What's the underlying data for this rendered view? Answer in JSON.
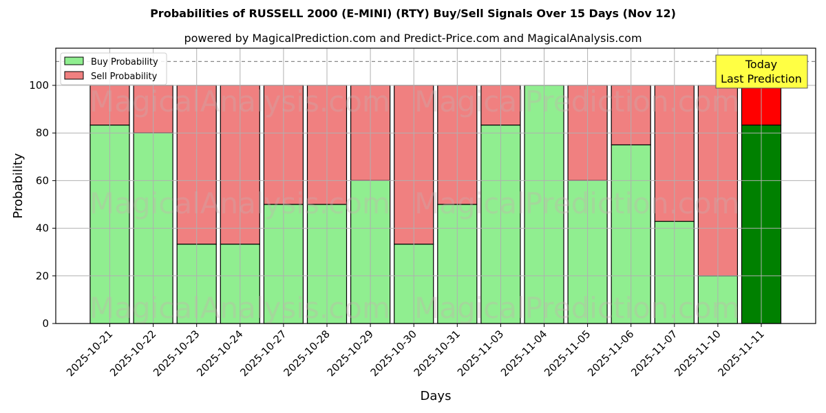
{
  "header": {
    "title": "Probabilities of RUSSELL 2000 (E-MINI) (RTY) Buy/Sell Signals Over 15 Days (Nov 12)",
    "subtitle": "powered by MagicalPrediction.com and Predict-Price.com and MagicalAnalysis.com"
  },
  "legend": {
    "buy_label": "Buy Probability",
    "sell_label": "Sell Probability"
  },
  "annotation": {
    "line1": "Today",
    "line2": "Last Prediction"
  },
  "watermarks": [
    "MagicalAnalysis.com",
    "MagicalPrediction.com"
  ],
  "colors": {
    "buy": "#90EE90",
    "sell": "#F08080",
    "today_buy": "#008000",
    "today_sell": "#FF0000",
    "annotation_bg": "#FFFF44"
  },
  "chart_data": {
    "type": "bar",
    "stacked": true,
    "title": "Probabilities of RUSSELL 2000 (E-MINI) (RTY) Buy/Sell Signals Over 15 Days (Nov 12)",
    "subtitle": "powered by MagicalPrediction.com and Predict-Price.com and MagicalAnalysis.com",
    "xlabel": "Days",
    "ylabel": "Probability",
    "ylim": [
      0,
      115
    ],
    "yticks": [
      0,
      20,
      40,
      60,
      80,
      100
    ],
    "grid": true,
    "legend_position": "upper left",
    "reference_line": 110,
    "categories": [
      "2025-10-21",
      "2025-10-22",
      "2025-10-23",
      "2025-10-24",
      "2025-10-27",
      "2025-10-28",
      "2025-10-29",
      "2025-10-30",
      "2025-10-31",
      "2025-11-03",
      "2025-11-04",
      "2025-11-05",
      "2025-11-06",
      "2025-11-07",
      "2025-11-10",
      "2025-11-11"
    ],
    "series": [
      {
        "name": "Buy Probability",
        "values": [
          83.3,
          80,
          33.3,
          33.3,
          50,
          50,
          60,
          33.3,
          50,
          83.3,
          100,
          60,
          75,
          42.9,
          20,
          83.3
        ]
      },
      {
        "name": "Sell Probability",
        "values": [
          16.7,
          20,
          66.7,
          66.7,
          50,
          50,
          40,
          66.7,
          50,
          16.7,
          0,
          40,
          25,
          57.1,
          80,
          16.7
        ]
      }
    ],
    "annotations": [
      {
        "text": "Today\nLast Prediction",
        "x": "2025-11-11"
      }
    ]
  }
}
